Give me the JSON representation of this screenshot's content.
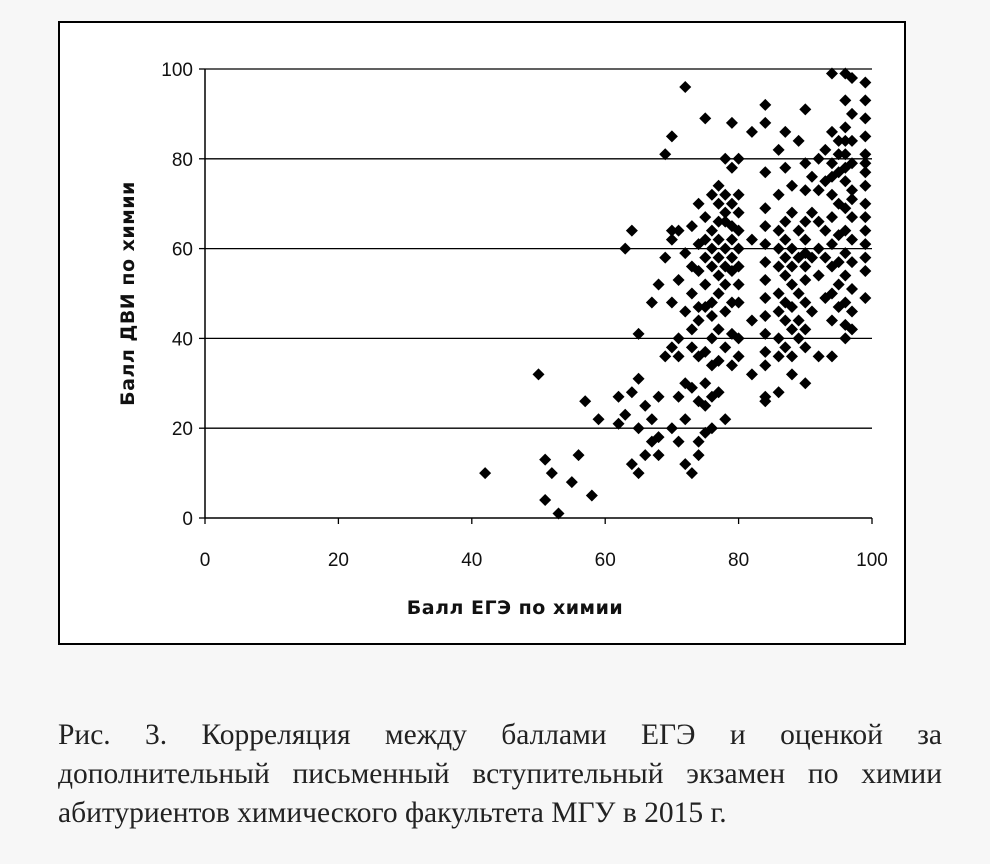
{
  "caption": "Рис. 3. Корреляция между баллами ЕГЭ и оценкой за дополнительный письменный вступительный экзамен по химии абитуриентов химического факультета МГУ в 2015 г.",
  "chart_data": {
    "type": "scatter",
    "title": "",
    "xlabel": "Балл ЕГЭ по химии",
    "ylabel": "Балл ДВИ по химии",
    "xlim": [
      0,
      100
    ],
    "ylim": [
      0,
      100
    ],
    "xticks": [
      "0",
      "20",
      "40",
      "60",
      "80",
      "100"
    ],
    "yticks": [
      "0",
      "20",
      "40",
      "60",
      "80",
      "100"
    ],
    "grid": "horizontal",
    "marker": "diamond",
    "marker_color": "#000000",
    "points": [
      [
        42,
        10
      ],
      [
        50,
        32
      ],
      [
        51,
        13
      ],
      [
        51,
        4
      ],
      [
        52,
        10
      ],
      [
        53,
        1
      ],
      [
        55,
        8
      ],
      [
        56,
        14
      ],
      [
        57,
        26
      ],
      [
        58,
        5
      ],
      [
        59,
        22
      ],
      [
        62,
        27
      ],
      [
        62,
        21
      ],
      [
        63,
        60
      ],
      [
        63,
        23
      ],
      [
        64,
        64
      ],
      [
        64,
        12
      ],
      [
        64,
        28
      ],
      [
        65,
        10
      ],
      [
        65,
        20
      ],
      [
        65,
        41
      ],
      [
        65,
        31
      ],
      [
        66,
        14
      ],
      [
        66,
        25
      ],
      [
        67,
        17
      ],
      [
        67,
        48
      ],
      [
        67,
        22
      ],
      [
        68,
        14
      ],
      [
        68,
        18
      ],
      [
        68,
        52
      ],
      [
        68,
        27
      ],
      [
        69,
        58
      ],
      [
        69,
        36
      ],
      [
        69,
        81
      ],
      [
        70,
        85
      ],
      [
        70,
        62
      ],
      [
        70,
        48
      ],
      [
        70,
        38
      ],
      [
        70,
        20
      ],
      [
        70,
        64
      ],
      [
        71,
        40
      ],
      [
        71,
        27
      ],
      [
        71,
        17
      ],
      [
        71,
        53
      ],
      [
        71,
        64
      ],
      [
        71,
        36
      ],
      [
        72,
        96
      ],
      [
        72,
        46
      ],
      [
        72,
        59
      ],
      [
        72,
        22
      ],
      [
        72,
        30
      ],
      [
        72,
        12
      ],
      [
        73,
        65
      ],
      [
        73,
        50
      ],
      [
        73,
        42
      ],
      [
        73,
        29
      ],
      [
        73,
        10
      ],
      [
        73,
        38
      ],
      [
        73,
        56
      ],
      [
        74,
        55
      ],
      [
        74,
        47
      ],
      [
        74,
        61
      ],
      [
        74,
        70
      ],
      [
        74,
        36
      ],
      [
        74,
        26
      ],
      [
        74,
        17
      ],
      [
        74,
        14
      ],
      [
        74,
        44
      ],
      [
        75,
        89
      ],
      [
        75,
        67
      ],
      [
        75,
        58
      ],
      [
        75,
        47
      ],
      [
        75,
        37
      ],
      [
        75,
        25
      ],
      [
        75,
        19
      ],
      [
        75,
        52
      ],
      [
        75,
        62
      ],
      [
        75,
        30
      ],
      [
        76,
        72
      ],
      [
        76,
        64
      ],
      [
        76,
        56
      ],
      [
        76,
        48
      ],
      [
        76,
        40
      ],
      [
        76,
        34
      ],
      [
        76,
        27
      ],
      [
        76,
        20
      ],
      [
        76,
        60
      ],
      [
        76,
        45
      ],
      [
        77,
        74
      ],
      [
        77,
        66
      ],
      [
        77,
        58
      ],
      [
        77,
        50
      ],
      [
        77,
        42
      ],
      [
        77,
        35
      ],
      [
        77,
        28
      ],
      [
        77,
        70
      ],
      [
        77,
        54
      ],
      [
        77,
        62
      ],
      [
        78,
        80
      ],
      [
        78,
        72
      ],
      [
        78,
        66
      ],
      [
        78,
        60
      ],
      [
        78,
        52
      ],
      [
        78,
        46
      ],
      [
        78,
        38
      ],
      [
        78,
        22
      ],
      [
        78,
        56
      ],
      [
        78,
        68
      ],
      [
        79,
        78
      ],
      [
        79,
        70
      ],
      [
        79,
        62
      ],
      [
        79,
        55
      ],
      [
        79,
        48
      ],
      [
        79,
        41
      ],
      [
        79,
        34
      ],
      [
        79,
        65
      ],
      [
        79,
        58
      ],
      [
        79,
        88
      ],
      [
        80,
        80
      ],
      [
        80,
        72
      ],
      [
        80,
        64
      ],
      [
        80,
        56
      ],
      [
        80,
        48
      ],
      [
        80,
        40
      ],
      [
        80,
        36
      ],
      [
        80,
        60
      ],
      [
        80,
        68
      ],
      [
        80,
        52
      ],
      [
        82,
        86
      ],
      [
        82,
        62
      ],
      [
        82,
        44
      ],
      [
        82,
        32
      ],
      [
        84,
        92
      ],
      [
        84,
        77
      ],
      [
        84,
        69
      ],
      [
        84,
        65
      ],
      [
        84,
        61
      ],
      [
        84,
        57
      ],
      [
        84,
        53
      ],
      [
        84,
        49
      ],
      [
        84,
        45
      ],
      [
        84,
        41
      ],
      [
        84,
        37
      ],
      [
        84,
        27
      ],
      [
        84,
        26
      ],
      [
        84,
        34
      ],
      [
        84,
        88
      ],
      [
        86,
        82
      ],
      [
        86,
        72
      ],
      [
        86,
        64
      ],
      [
        86,
        60
      ],
      [
        86,
        56
      ],
      [
        86,
        50
      ],
      [
        86,
        46
      ],
      [
        86,
        40
      ],
      [
        86,
        36
      ],
      [
        86,
        28
      ],
      [
        87,
        86
      ],
      [
        87,
        78
      ],
      [
        87,
        66
      ],
      [
        87,
        58
      ],
      [
        87,
        54
      ],
      [
        87,
        48
      ],
      [
        87,
        44
      ],
      [
        87,
        38
      ],
      [
        87,
        62
      ],
      [
        88,
        74
      ],
      [
        88,
        68
      ],
      [
        88,
        60
      ],
      [
        88,
        52
      ],
      [
        88,
        47
      ],
      [
        88,
        42
      ],
      [
        88,
        36
      ],
      [
        88,
        32
      ],
      [
        88,
        56
      ],
      [
        89,
        84
      ],
      [
        89,
        64
      ],
      [
        89,
        58
      ],
      [
        89,
        50
      ],
      [
        89,
        44
      ],
      [
        89,
        40
      ],
      [
        90,
        91
      ],
      [
        90,
        79
      ],
      [
        90,
        73
      ],
      [
        90,
        66
      ],
      [
        90,
        59
      ],
      [
        90,
        53
      ],
      [
        90,
        48
      ],
      [
        90,
        42
      ],
      [
        90,
        38
      ],
      [
        90,
        30
      ],
      [
        90,
        62
      ],
      [
        90,
        56
      ],
      [
        91,
        76
      ],
      [
        91,
        68
      ],
      [
        91,
        58
      ],
      [
        91,
        46
      ],
      [
        92,
        80
      ],
      [
        92,
        73
      ],
      [
        92,
        66
      ],
      [
        92,
        60
      ],
      [
        92,
        54
      ],
      [
        92,
        36
      ],
      [
        93,
        82
      ],
      [
        93,
        75
      ],
      [
        93,
        64
      ],
      [
        93,
        49
      ],
      [
        93,
        58
      ],
      [
        94,
        99
      ],
      [
        94,
        86
      ],
      [
        94,
        79
      ],
      [
        94,
        72
      ],
      [
        94,
        67
      ],
      [
        94,
        61
      ],
      [
        94,
        56
      ],
      [
        94,
        50
      ],
      [
        94,
        44
      ],
      [
        94,
        36
      ],
      [
        94,
        76
      ],
      [
        95,
        84
      ],
      [
        95,
        77
      ],
      [
        95,
        70
      ],
      [
        95,
        63
      ],
      [
        95,
        57
      ],
      [
        95,
        52
      ],
      [
        95,
        47
      ],
      [
        95,
        81
      ],
      [
        96,
        99
      ],
      [
        96,
        93
      ],
      [
        96,
        87
      ],
      [
        96,
        81
      ],
      [
        96,
        75
      ],
      [
        96,
        69
      ],
      [
        96,
        64
      ],
      [
        96,
        59
      ],
      [
        96,
        54
      ],
      [
        96,
        48
      ],
      [
        96,
        43
      ],
      [
        96,
        40
      ],
      [
        96,
        78
      ],
      [
        96,
        84
      ],
      [
        97,
        98
      ],
      [
        97,
        90
      ],
      [
        97,
        84
      ],
      [
        97,
        79
      ],
      [
        97,
        73
      ],
      [
        97,
        67
      ],
      [
        97,
        62
      ],
      [
        97,
        57
      ],
      [
        97,
        51
      ],
      [
        97,
        46
      ],
      [
        97,
        42
      ],
      [
        97,
        71
      ],
      [
        99,
        97
      ],
      [
        99,
        93
      ],
      [
        99,
        89
      ],
      [
        99,
        85
      ],
      [
        99,
        81
      ],
      [
        99,
        77
      ],
      [
        99,
        74
      ],
      [
        99,
        70
      ],
      [
        99,
        67
      ],
      [
        99,
        64
      ],
      [
        99,
        61
      ],
      [
        99,
        58
      ],
      [
        99,
        55
      ],
      [
        99,
        49
      ],
      [
        99,
        79
      ]
    ]
  }
}
